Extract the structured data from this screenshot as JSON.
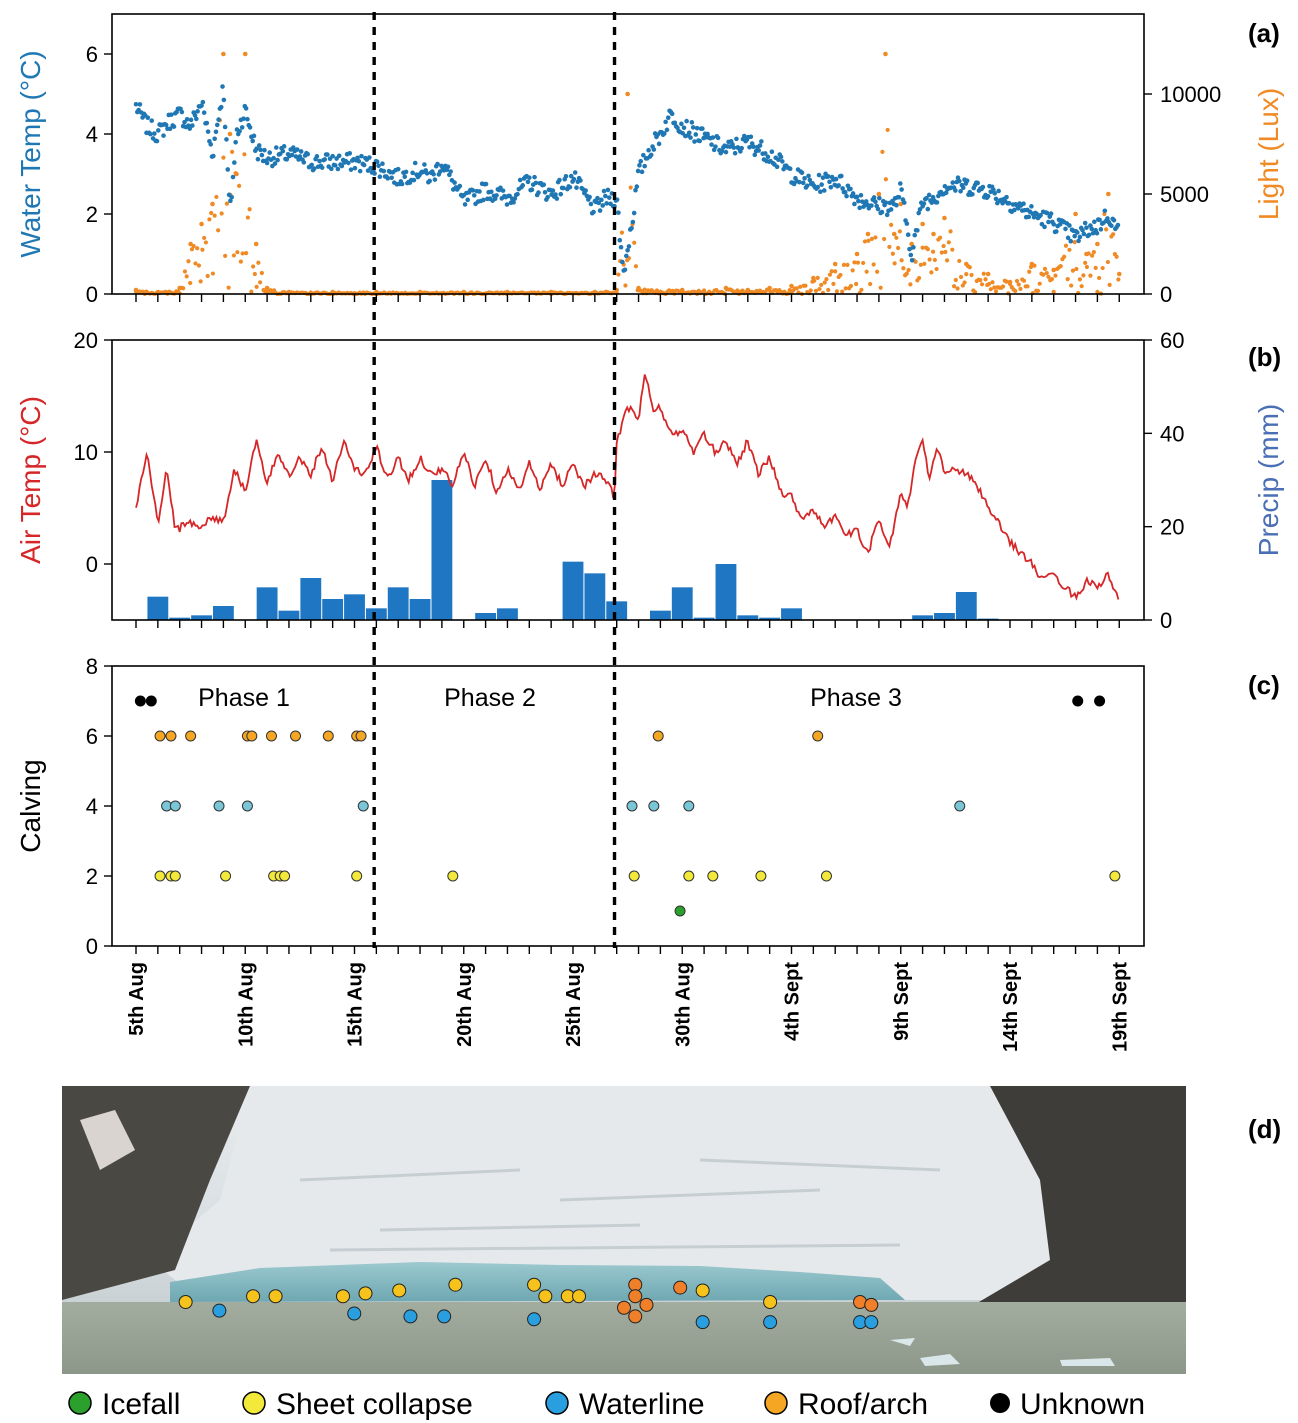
{
  "colors": {
    "water_temp": "#1f77b4",
    "light": "#f08a24",
    "air_temp": "#d62728",
    "precip_bar": "#1f77c4",
    "precip_axis": "#4a6fb5",
    "icefall": "#2ca02c",
    "sheet_collapse": "#f2e93a",
    "waterline": "#79c6d6",
    "roof_arch": "#f5a623",
    "unknown": "#000000",
    "photo_waterline": "#2a9fe0",
    "photo_roof": "#f07f2a",
    "photo_sheet": "#f6c21c"
  },
  "panel_labels": [
    "(a)",
    "(b)",
    "(c)",
    "(d)"
  ],
  "x_axis": {
    "start": "2019-08-05",
    "end": "2019-09-19",
    "tick_labels": [
      "5th Aug",
      "10th Aug",
      "15th Aug",
      "20th Aug",
      "25th Aug",
      "30th Aug",
      "4th Sept",
      "9th Sept",
      "14th Sept",
      "19th Sept"
    ],
    "tick_dates": [
      "08-05",
      "08-10",
      "08-15",
      "08-20",
      "08-25",
      "08-30",
      "09-04",
      "09-09",
      "09-14",
      "09-19"
    ],
    "phase_boundaries": [
      "08-15.9",
      "08-26.9"
    ]
  },
  "chart_data": [
    {
      "panel": "(a)",
      "type": "scatter",
      "ylabel_left": "Water Temp (°C)",
      "ylabel_right": "Light (Lux)",
      "ylim_left": [
        0,
        7
      ],
      "ylim_right": [
        0,
        14000
      ],
      "yticks_left": [
        "0",
        "2",
        "4",
        "6"
      ],
      "yticks_right": [
        "0",
        "5000",
        "10000"
      ],
      "series": [
        {
          "name": "Water Temp",
          "axis": "left",
          "x": [
            "08-05",
            "08-05.5",
            "08-06",
            "08-06.5",
            "08-07",
            "08-07.5",
            "08-08",
            "08-08.5",
            "08-09",
            "08-09.3",
            "08-09.6",
            "08-10",
            "08-10.5",
            "08-11",
            "08-12",
            "08-13",
            "08-14",
            "08-15",
            "08-16",
            "08-17",
            "08-17.5",
            "08-18",
            "08-18.5",
            "08-19",
            "08-19.5",
            "08-20",
            "08-21",
            "08-22",
            "08-23",
            "08-24",
            "08-25",
            "08-26",
            "08-26.5",
            "08-27",
            "08-27.3",
            "08-27.7",
            "08-28",
            "08-28.5",
            "08-29",
            "08-29.5",
            "08-30",
            "08-31",
            "09-01",
            "09-02",
            "09-03",
            "09-04",
            "09-05",
            "09-06",
            "09-07",
            "09-08",
            "09-08.7",
            "09-09",
            "09-09.5",
            "09-10",
            "09-10.5",
            "09-11",
            "09-12",
            "09-13",
            "09-14",
            "09-15",
            "09-16",
            "09-17",
            "09-17.5",
            "09-18",
            "09-18.5",
            "09-19"
          ],
          "y": [
            4.7,
            4.2,
            4.0,
            4.3,
            4.5,
            4.2,
            4.8,
            3.5,
            5.2,
            2.0,
            4.0,
            4.6,
            3.6,
            3.4,
            3.5,
            3.3,
            3.3,
            3.3,
            3.2,
            2.9,
            3.0,
            3.1,
            2.9,
            3.3,
            2.8,
            2.3,
            2.6,
            2.4,
            2.8,
            2.5,
            2.9,
            2.1,
            2.4,
            2.4,
            0.5,
            1.8,
            3.0,
            3.6,
            4.0,
            4.5,
            4.2,
            3.9,
            3.6,
            3.8,
            3.5,
            3.0,
            2.7,
            2.9,
            2.4,
            2.2,
            2.2,
            2.6,
            1.0,
            2.3,
            2.4,
            2.7,
            2.7,
            2.6,
            2.3,
            2.0,
            1.8,
            1.4,
            1.6,
            1.7,
            2.0,
            1.5
          ]
        },
        {
          "name": "Light",
          "axis": "right",
          "x": [
            "08-05",
            "08-06",
            "08-07",
            "08-07.5",
            "08-08",
            "08-08.5",
            "08-09",
            "08-09.3",
            "08-09.6",
            "08-10",
            "08-10.5",
            "08-11",
            "08-12",
            "08-14",
            "08-16",
            "08-18",
            "08-20",
            "08-22",
            "08-24",
            "08-26",
            "08-27",
            "08-27.5",
            "08-28",
            "08-30",
            "09-01",
            "09-02",
            "09-03",
            "09-04",
            "09-05",
            "09-06",
            "09-07",
            "09-07.5",
            "09-08",
            "09-08.3",
            "09-08.7",
            "09-09",
            "09-09.5",
            "09-10",
            "09-10.5",
            "09-11",
            "09-12",
            "09-13",
            "09-14",
            "09-15",
            "09-16",
            "09-17",
            "09-17.5",
            "09-18",
            "09-18.5",
            "09-19"
          ],
          "y": [
            200,
            100,
            300,
            2500,
            3500,
            4500,
            12000,
            8000,
            6000,
            12000,
            2500,
            300,
            100,
            100,
            100,
            100,
            100,
            100,
            100,
            100,
            200,
            10000,
            300,
            200,
            300,
            200,
            300,
            400,
            800,
            1500,
            2000,
            3000,
            5000,
            12000,
            3000,
            4500,
            2500,
            3500,
            3000,
            3800,
            1500,
            1000,
            600,
            1500,
            1200,
            4000,
            2000,
            2500,
            5000,
            1000
          ]
        }
      ]
    },
    {
      "panel": "(b)",
      "type": "line+bar",
      "ylabel_left": "Air Temp (°C)",
      "ylabel_right": "Precip (mm)",
      "ylim_left": [
        -5,
        20
      ],
      "ylim_right": [
        0,
        60
      ],
      "yticks_left": [
        "0",
        "10",
        "20"
      ],
      "yticks_right": [
        "0",
        "20",
        "40",
        "60"
      ],
      "series": [
        {
          "name": "Air Temp",
          "axis": "left",
          "type": "line",
          "x": [
            "08-05",
            "08-05.5",
            "08-06",
            "08-06.4",
            "08-06.8",
            "08-07",
            "08-07.5",
            "08-08",
            "08-08.5",
            "08-09",
            "08-09.5",
            "08-10",
            "08-10.5",
            "08-11",
            "08-11.5",
            "08-12",
            "08-12.5",
            "08-13",
            "08-13.5",
            "08-14",
            "08-14.5",
            "08-15",
            "08-15.5",
            "08-16",
            "08-16.5",
            "08-17",
            "08-17.5",
            "08-18",
            "08-18.5",
            "08-19",
            "08-19.5",
            "08-20",
            "08-20.5",
            "08-21",
            "08-21.5",
            "08-22",
            "08-22.5",
            "08-23",
            "08-23.5",
            "08-24",
            "08-24.5",
            "08-25",
            "08-25.5",
            "08-26",
            "08-26.5",
            "08-26.9",
            "08-27",
            "08-27.5",
            "08-28",
            "08-28.3",
            "08-28.7",
            "08-29",
            "08-29.5",
            "08-30",
            "08-30.5",
            "08-31",
            "08-31.5",
            "09-01",
            "09-01.5",
            "09-02",
            "09-02.5",
            "09-03",
            "09-03.5",
            "09-04",
            "09-04.5",
            "09-05",
            "09-05.5",
            "09-06",
            "09-06.5",
            "09-07",
            "09-07.5",
            "09-08",
            "09-08.5",
            "09-09",
            "09-09.3",
            "09-09.7",
            "09-10",
            "09-10.3",
            "09-10.7",
            "09-11",
            "09-11.5",
            "09-12",
            "09-12.5",
            "09-13",
            "09-13.5",
            "09-14",
            "09-14.5",
            "09-15",
            "09-15.5",
            "09-16",
            "09-16.5",
            "09-17",
            "09-17.5",
            "09-18",
            "09-18.5",
            "09-19"
          ],
          "y": [
            5,
            10,
            3.5,
            8.5,
            3,
            3.2,
            3.8,
            3.3,
            4.2,
            3.8,
            8.5,
            6.5,
            11,
            7,
            10,
            8,
            9.5,
            8,
            10.5,
            7.5,
            11,
            8.5,
            8,
            10.5,
            7.5,
            9.5,
            7.5,
            9.5,
            8,
            8.5,
            7,
            10,
            7,
            9.5,
            6.5,
            8.5,
            6.5,
            9,
            6.5,
            9,
            7,
            9,
            7,
            8,
            7.5,
            6,
            11,
            14,
            13,
            17,
            13.5,
            14,
            11.5,
            12,
            10,
            11.5,
            10,
            11,
            9,
            11,
            8,
            9.5,
            6.5,
            6,
            4,
            5,
            3,
            4.5,
            2.5,
            3,
            1,
            4,
            1.5,
            6.5,
            5,
            9.5,
            11,
            7.5,
            10.5,
            8,
            8.5,
            8,
            7,
            5,
            3.5,
            2,
            1,
            0,
            -1.5,
            -1,
            -2,
            -3,
            -1.5,
            -2,
            -1,
            -3.5
          ]
        },
        {
          "name": "Precip",
          "axis": "right",
          "type": "bar",
          "x": [
            "08-06",
            "08-07",
            "08-08",
            "08-09",
            "08-11",
            "08-12",
            "08-13",
            "08-14",
            "08-15",
            "08-16",
            "08-17",
            "08-18",
            "08-19",
            "08-20",
            "08-21",
            "08-22",
            "08-23",
            "08-24",
            "08-25",
            "08-26",
            "08-27",
            "08-28",
            "08-29",
            "08-30",
            "08-31",
            "09-01",
            "09-02",
            "09-03",
            "09-04",
            "09-05",
            "09-06",
            "09-07",
            "09-08",
            "09-09",
            "09-10",
            "09-11",
            "09-12",
            "09-13",
            "09-14"
          ],
          "y": [
            5,
            0.5,
            1,
            3,
            7,
            2,
            9,
            4.5,
            5.5,
            2.5,
            7,
            4.5,
            30,
            0,
            1.5,
            2.5,
            0,
            0,
            12.5,
            10,
            4,
            0,
            2,
            7,
            0.5,
            12,
            1,
            0.5,
            2.5,
            0,
            0,
            0,
            0,
            0,
            1,
            1.5,
            6,
            0.3,
            0
          ]
        }
      ]
    },
    {
      "panel": "(c)",
      "type": "scatter",
      "ylabel": "Calving",
      "ylim": [
        0,
        8
      ],
      "yticks": [
        "0",
        "2",
        "4",
        "6",
        "8"
      ],
      "phase_labels": [
        "Phase 1",
        "Phase 2",
        "Phase 3"
      ],
      "series": [
        {
          "name": "Icefall",
          "x": [
            "08-29.9"
          ],
          "y": [
            1
          ]
        },
        {
          "name": "Sheet collapse",
          "x": [
            "08-06.1",
            "08-06.6",
            "08-06.8",
            "08-09.1",
            "08-11.3",
            "08-11.6",
            "08-11.8",
            "08-15.1",
            "08-19.5",
            "08-27.8",
            "08-30.3",
            "08-31.4",
            "09-02.6",
            "09-05.6",
            "09-18.8"
          ],
          "y": [
            2,
            2,
            2,
            2,
            2,
            2,
            2,
            2,
            2,
            2,
            2,
            2,
            2,
            2,
            2
          ]
        },
        {
          "name": "Waterline",
          "x": [
            "08-06.4",
            "08-06.8",
            "08-08.8",
            "08-10.1",
            "08-15.4",
            "08-27.7",
            "08-28.7",
            "08-30.3",
            "09-11.7"
          ],
          "y": [
            4,
            4,
            4,
            4,
            4,
            4,
            4,
            4,
            4
          ]
        },
        {
          "name": "Roof/arch",
          "x": [
            "08-06.1",
            "08-06.6",
            "08-07.5",
            "08-10.1",
            "08-10.3",
            "08-11.2",
            "08-12.3",
            "08-13.8",
            "08-15.1",
            "08-15.3",
            "08-28.9",
            "09-05.2"
          ],
          "y": [
            6,
            6,
            6,
            6,
            6,
            6,
            6,
            6,
            6,
            6,
            6,
            6
          ]
        },
        {
          "name": "Unknown",
          "x": [
            "08-05.2",
            "08-05.7",
            "09-17.1",
            "09-18.1"
          ],
          "y": [
            7,
            7,
            7,
            7
          ]
        }
      ]
    }
  ],
  "photo": {
    "markers": [
      {
        "type": "sheet",
        "x": 0.11,
        "y": 0.75
      },
      {
        "type": "sheet",
        "x": 0.17,
        "y": 0.73
      },
      {
        "type": "sheet",
        "x": 0.19,
        "y": 0.73
      },
      {
        "type": "sheet",
        "x": 0.25,
        "y": 0.73
      },
      {
        "type": "sheet",
        "x": 0.27,
        "y": 0.72
      },
      {
        "type": "sheet",
        "x": 0.3,
        "y": 0.71
      },
      {
        "type": "sheet",
        "x": 0.35,
        "y": 0.69
      },
      {
        "type": "sheet",
        "x": 0.42,
        "y": 0.69
      },
      {
        "type": "sheet",
        "x": 0.43,
        "y": 0.73
      },
      {
        "type": "sheet",
        "x": 0.45,
        "y": 0.73
      },
      {
        "type": "sheet",
        "x": 0.46,
        "y": 0.73
      },
      {
        "type": "sheet",
        "x": 0.57,
        "y": 0.71
      },
      {
        "type": "sheet",
        "x": 0.63,
        "y": 0.75
      },
      {
        "type": "waterline",
        "x": 0.14,
        "y": 0.78
      },
      {
        "type": "waterline",
        "x": 0.26,
        "y": 0.79
      },
      {
        "type": "waterline",
        "x": 0.31,
        "y": 0.8
      },
      {
        "type": "waterline",
        "x": 0.34,
        "y": 0.8
      },
      {
        "type": "waterline",
        "x": 0.42,
        "y": 0.81
      },
      {
        "type": "waterline",
        "x": 0.57,
        "y": 0.82
      },
      {
        "type": "waterline",
        "x": 0.63,
        "y": 0.82
      },
      {
        "type": "waterline",
        "x": 0.71,
        "y": 0.82
      },
      {
        "type": "waterline",
        "x": 0.72,
        "y": 0.82
      },
      {
        "type": "roof",
        "x": 0.51,
        "y": 0.69
      },
      {
        "type": "roof",
        "x": 0.55,
        "y": 0.7
      },
      {
        "type": "roof",
        "x": 0.5,
        "y": 0.77
      },
      {
        "type": "roof",
        "x": 0.52,
        "y": 0.76
      },
      {
        "type": "roof",
        "x": 0.51,
        "y": 0.8
      },
      {
        "type": "roof",
        "x": 0.71,
        "y": 0.75
      },
      {
        "type": "roof",
        "x": 0.72,
        "y": 0.76
      },
      {
        "type": "roof",
        "x": 0.51,
        "y": 0.73
      }
    ]
  },
  "legend": [
    {
      "label": "Icefall",
      "color_key": "icefall"
    },
    {
      "label": "Sheet collapse",
      "color_key": "sheet_collapse"
    },
    {
      "label": "Waterline",
      "color_key": "photo_waterline"
    },
    {
      "label": "Roof/arch",
      "color_key": "roof_arch"
    },
    {
      "label": "Unknown",
      "color_key": "unknown"
    }
  ]
}
